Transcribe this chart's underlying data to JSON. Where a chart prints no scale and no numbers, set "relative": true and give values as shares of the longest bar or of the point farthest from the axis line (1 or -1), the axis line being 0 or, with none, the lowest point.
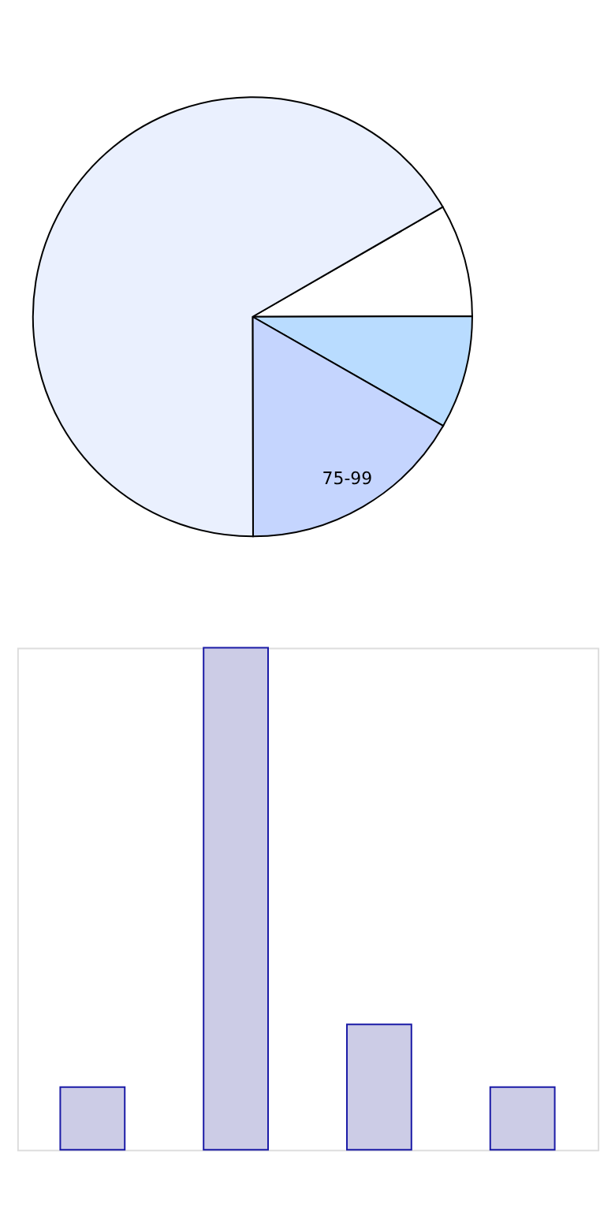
{
  "chart_data": [
    {
      "type": "pie",
      "categories": [
        null,
        null,
        "75-99",
        null
      ],
      "values": [
        8.3,
        8.3,
        16.7,
        66.7
      ],
      "colors": [
        "#ffffff",
        "#b9dcff",
        "#c5d5fe",
        "#eaf0fe"
      ]
    },
    {
      "type": "bar",
      "relative": true,
      "categories": [
        null,
        null,
        null,
        null
      ],
      "values": [
        0.125,
        1,
        0.25,
        0.125
      ],
      "color": "#cccce6"
    }
  ]
}
